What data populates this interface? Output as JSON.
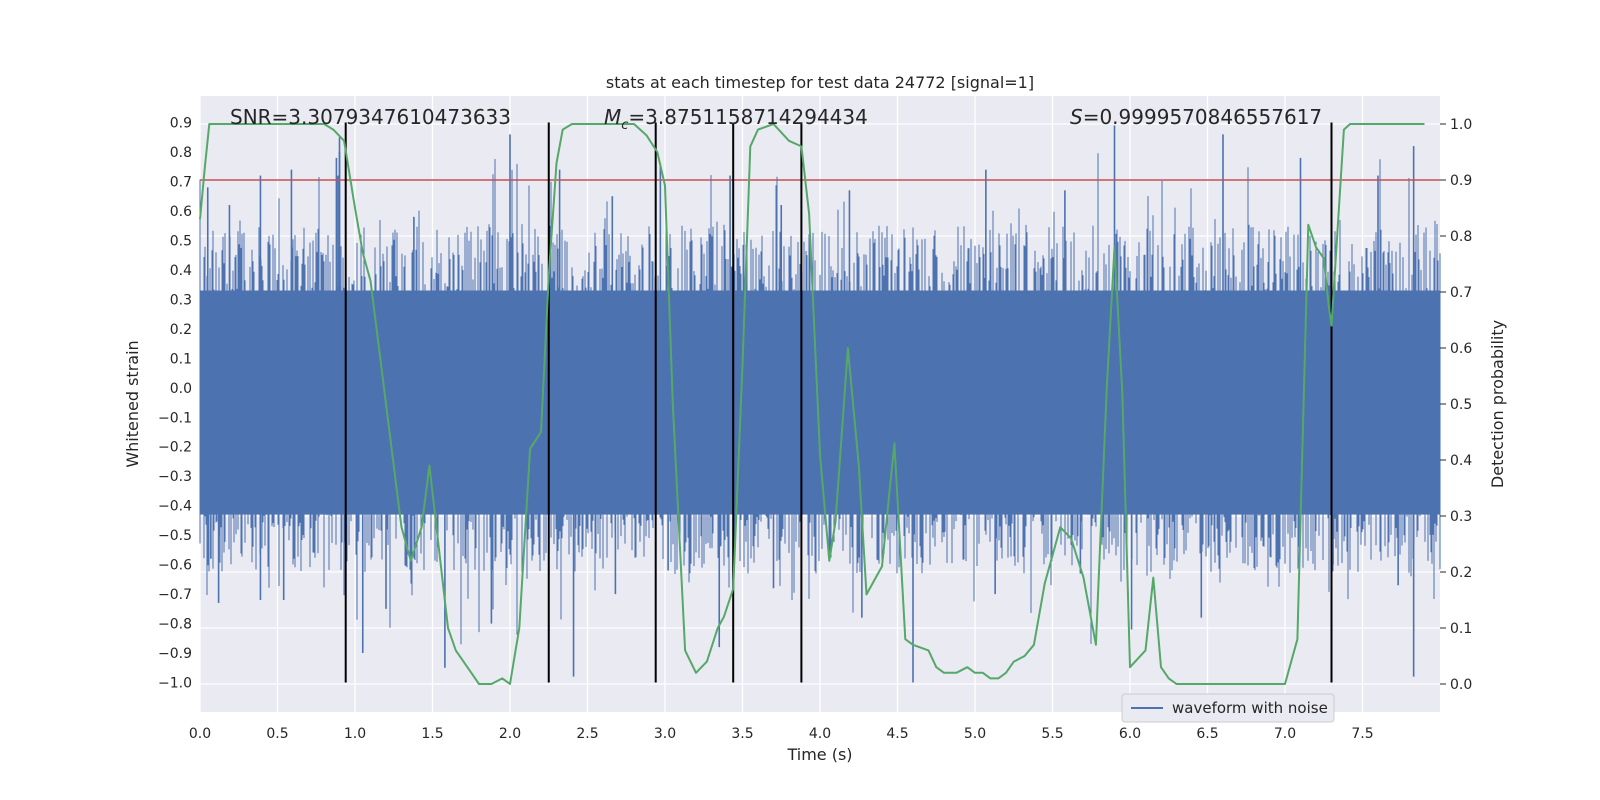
{
  "chart_data": {
    "type": "line",
    "title": "stats at each timestep for test data 24772 [signal=1]",
    "xlabel": "Time (s)",
    "ylabel": "Whitened strain",
    "ylabel_right": "Detection probability",
    "xlim": [
      0.0,
      8.0
    ],
    "ylim": [
      -1.1,
      0.99
    ],
    "ylim_right": [
      -0.05,
      1.05
    ],
    "xticks": [
      "0.0",
      "0.5",
      "1.0",
      "1.5",
      "2.0",
      "2.5",
      "3.0",
      "3.5",
      "4.0",
      "4.5",
      "5.0",
      "5.5",
      "6.0",
      "6.5",
      "7.0",
      "7.5"
    ],
    "yticks": [
      "0.9",
      "0.8",
      "0.7",
      "0.6",
      "0.5",
      "0.4",
      "0.3",
      "0.2",
      "0.1",
      "0.0",
      "−0.1",
      "−0.2",
      "−0.3",
      "−0.4",
      "−0.5",
      "−0.6",
      "−0.7",
      "−0.8",
      "−0.9",
      "−1.0"
    ],
    "yticks_right": [
      "1.0",
      "0.9",
      "0.8",
      "0.7",
      "0.6",
      "0.5",
      "0.4",
      "0.3",
      "0.2",
      "0.1",
      "0.0"
    ],
    "annotations": {
      "snr": "SNR=3.3079347610473633",
      "mc_symbol": "M",
      "mc_sub": "c",
      "mc_value": "=3.8751158714294434",
      "s_symbol": "S",
      "s_value": "=0.9999570846557617"
    },
    "threshold": {
      "value": 0.9,
      "axis": "right",
      "color": "#c44e52"
    },
    "vlines": [
      0.94,
      2.25,
      2.94,
      3.44,
      3.88,
      7.3
    ],
    "legend": {
      "label": "waveform with noise",
      "loc": "lower right"
    },
    "series": [
      {
        "name": "waveform with noise",
        "axis": "left",
        "color": "#4c72b0",
        "stats": {
          "envelope_low": -0.43,
          "envelope_high": 0.33,
          "max": 0.89,
          "min": -1.0
        },
        "spikes": [
          {
            "x": 0.05,
            "y": 0.68
          },
          {
            "x": 0.19,
            "y": 0.62
          },
          {
            "x": 0.39,
            "y": 0.72
          },
          {
            "x": 0.59,
            "y": 0.74
          },
          {
            "x": 0.89,
            "y": 0.72
          },
          {
            "x": 0.88,
            "y": 0.78
          },
          {
            "x": 0.9,
            "y": 0.8
          },
          {
            "x": 0.9,
            "y": 0.85
          },
          {
            "x": 1.38,
            "y": 0.58
          },
          {
            "x": 2.0,
            "y": 0.86
          },
          {
            "x": 2.32,
            "y": 0.74
          },
          {
            "x": 2.66,
            "y": 0.65
          },
          {
            "x": 2.97,
            "y": 0.76
          },
          {
            "x": 3.42,
            "y": 0.72
          },
          {
            "x": 3.75,
            "y": 0.62
          },
          {
            "x": 4.19,
            "y": 0.67
          },
          {
            "x": 5.07,
            "y": 0.74
          },
          {
            "x": 5.58,
            "y": 0.67
          },
          {
            "x": 5.9,
            "y": 0.89
          },
          {
            "x": 6.6,
            "y": 0.86
          },
          {
            "x": 7.1,
            "y": 0.78
          },
          {
            "x": 7.6,
            "y": 0.72
          },
          {
            "x": 7.83,
            "y": 0.82
          },
          {
            "x": 0.07,
            "y": -0.58
          },
          {
            "x": 0.12,
            "y": -0.73
          },
          {
            "x": 0.39,
            "y": -0.72
          },
          {
            "x": 0.54,
            "y": -0.72
          },
          {
            "x": 1.05,
            "y": -0.9
          },
          {
            "x": 1.2,
            "y": -0.75
          },
          {
            "x": 1.36,
            "y": -0.6
          },
          {
            "x": 1.58,
            "y": -0.95
          },
          {
            "x": 1.88,
            "y": -0.8
          },
          {
            "x": 2.41,
            "y": -0.98
          },
          {
            "x": 2.68,
            "y": -0.7
          },
          {
            "x": 3.02,
            "y": -0.62
          },
          {
            "x": 3.35,
            "y": -0.88
          },
          {
            "x": 3.7,
            "y": -0.68
          },
          {
            "x": 4.27,
            "y": -0.78
          },
          {
            "x": 4.6,
            "y": -1.0
          },
          {
            "x": 5.13,
            "y": -0.7
          },
          {
            "x": 5.68,
            "y": -0.63
          },
          {
            "x": 6.01,
            "y": -0.82
          },
          {
            "x": 6.46,
            "y": -0.78
          },
          {
            "x": 7.31,
            "y": -0.6
          },
          {
            "x": 7.73,
            "y": -0.67
          },
          {
            "x": 7.83,
            "y": -0.98
          }
        ]
      },
      {
        "name": "detection probability",
        "axis": "right",
        "color": "#55a868",
        "x": [
          0.0,
          0.03,
          0.06,
          0.8,
          0.86,
          0.93,
          1.0,
          1.05,
          1.1,
          1.2,
          1.3,
          1.36,
          1.43,
          1.48,
          1.55,
          1.6,
          1.65,
          1.75,
          1.8,
          1.88,
          1.95,
          2.0,
          2.06,
          2.13,
          2.2,
          2.25,
          2.3,
          2.34,
          2.4,
          2.8,
          2.88,
          2.95,
          3.0,
          3.05,
          3.13,
          3.2,
          3.27,
          3.34,
          3.38,
          3.44,
          3.5,
          3.55,
          3.6,
          3.7,
          3.8,
          3.88,
          3.93,
          4.0,
          4.06,
          4.1,
          4.18,
          4.25,
          4.3,
          4.4,
          4.48,
          4.55,
          4.6,
          4.7,
          4.75,
          4.8,
          4.88,
          4.95,
          5.0,
          5.05,
          5.1,
          5.15,
          5.2,
          5.25,
          5.32,
          5.38,
          5.45,
          5.55,
          5.62,
          5.7,
          5.78,
          5.85,
          5.9,
          5.95,
          6.0,
          6.1,
          6.15,
          6.2,
          6.25,
          6.3,
          6.4,
          6.8,
          7.0,
          7.08,
          7.15,
          7.2,
          7.25,
          7.28,
          7.3,
          7.38,
          7.42,
          7.9
        ],
        "values": [
          0.83,
          0.92,
          1.0,
          1.0,
          0.99,
          0.97,
          0.85,
          0.77,
          0.72,
          0.5,
          0.28,
          0.22,
          0.28,
          0.39,
          0.22,
          0.1,
          0.06,
          0.02,
          0.0,
          0.0,
          0.01,
          0.0,
          0.1,
          0.42,
          0.45,
          0.73,
          0.93,
          0.99,
          1.0,
          1.0,
          0.98,
          0.95,
          0.89,
          0.5,
          0.06,
          0.02,
          0.04,
          0.1,
          0.12,
          0.17,
          0.57,
          0.96,
          0.99,
          1.0,
          0.97,
          0.96,
          0.84,
          0.41,
          0.22,
          0.29,
          0.6,
          0.39,
          0.16,
          0.21,
          0.43,
          0.08,
          0.07,
          0.06,
          0.03,
          0.02,
          0.02,
          0.03,
          0.02,
          0.02,
          0.01,
          0.01,
          0.02,
          0.04,
          0.05,
          0.07,
          0.18,
          0.28,
          0.26,
          0.19,
          0.07,
          0.53,
          0.78,
          0.52,
          0.03,
          0.06,
          0.19,
          0.03,
          0.01,
          0.0,
          0.0,
          0.0,
          0.0,
          0.08,
          0.82,
          0.78,
          0.76,
          0.68,
          0.64,
          0.99,
          1.0,
          1.0
        ]
      }
    ]
  }
}
